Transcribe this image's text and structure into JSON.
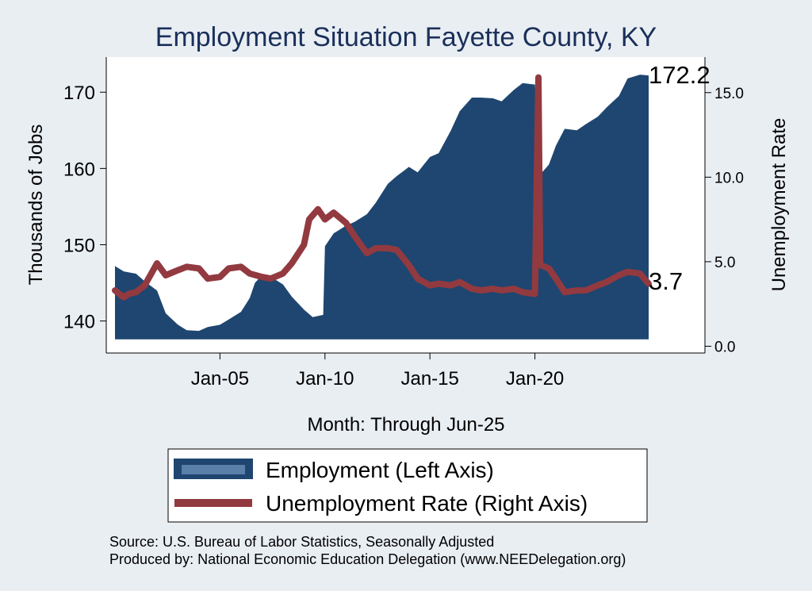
{
  "chart_data": {
    "type": "area",
    "title": "Employment Situation Fayette  County, KY",
    "xlabel": "Month: Through Jun-25",
    "ylabel_left": "Thousands of Jobs",
    "ylabel_right": "Unemployment Rate",
    "x_start": "2000-01",
    "x_end": "2025-06",
    "x_ticks": [
      "Jan-05",
      "Jan-10",
      "Jan-15",
      "Jan-20"
    ],
    "y_left_ticks": [
      140,
      150,
      160,
      170
    ],
    "y_right_ticks": [
      "0.0",
      "5.0",
      "10.0",
      "15.0"
    ],
    "ylim_left": [
      135.8,
      174.6
    ],
    "ylim_right": [
      -0.4,
      17.1
    ],
    "grid": false,
    "legend": {
      "position": "bottom",
      "items": [
        "Employment (Left Axis)",
        "Unemployment Rate (Right Axis)"
      ]
    },
    "colors": {
      "employment": "#1e4670",
      "employment_legend": "#5a7fa8",
      "unemployment": "#923a40",
      "title": "#1a2f5a",
      "background": "#e9eef3"
    },
    "end_labels": {
      "employment": "172.2",
      "unemployment": "3.7"
    },
    "series": [
      {
        "name": "Employment (Left Axis)",
        "axis": "left",
        "points": [
          [
            "2000-01",
            147.2
          ],
          [
            "2000-06",
            146.5
          ],
          [
            "2001-01",
            146.2
          ],
          [
            "2001-06",
            145.2
          ],
          [
            "2002-01",
            144.0
          ],
          [
            "2002-06",
            141.0
          ],
          [
            "2003-01",
            139.5
          ],
          [
            "2003-06",
            138.8
          ],
          [
            "2004-01",
            138.7
          ],
          [
            "2004-06",
            139.2
          ],
          [
            "2005-01",
            139.5
          ],
          [
            "2005-06",
            140.2
          ],
          [
            "2006-01",
            141.2
          ],
          [
            "2006-06",
            143.0
          ],
          [
            "2006-09",
            145.0
          ],
          [
            "2007-01",
            146.0
          ],
          [
            "2007-06",
            145.8
          ],
          [
            "2008-01",
            144.8
          ],
          [
            "2008-06",
            143.2
          ],
          [
            "2009-01",
            141.5
          ],
          [
            "2009-06",
            140.5
          ],
          [
            "2009-12",
            140.8
          ],
          [
            "2010-01",
            149.8
          ],
          [
            "2010-06",
            151.5
          ],
          [
            "2011-01",
            152.5
          ],
          [
            "2011-06",
            153.0
          ],
          [
            "2012-01",
            154.0
          ],
          [
            "2012-06",
            155.5
          ],
          [
            "2013-01",
            158.0
          ],
          [
            "2013-06",
            159.0
          ],
          [
            "2014-01",
            160.2
          ],
          [
            "2014-06",
            159.5
          ],
          [
            "2015-01",
            161.5
          ],
          [
            "2015-06",
            162.0
          ],
          [
            "2016-01",
            165.0
          ],
          [
            "2016-06",
            167.5
          ],
          [
            "2017-01",
            169.3
          ],
          [
            "2017-06",
            169.3
          ],
          [
            "2018-01",
            169.2
          ],
          [
            "2018-06",
            168.8
          ],
          [
            "2019-01",
            170.3
          ],
          [
            "2019-06",
            171.2
          ],
          [
            "2020-01",
            171.0
          ],
          [
            "2020-04",
            159.2
          ],
          [
            "2020-09",
            160.5
          ],
          [
            "2021-01",
            163.0
          ],
          [
            "2021-06",
            165.2
          ],
          [
            "2022-01",
            165.0
          ],
          [
            "2022-06",
            165.8
          ],
          [
            "2023-01",
            166.8
          ],
          [
            "2023-06",
            168.0
          ],
          [
            "2024-01",
            169.5
          ],
          [
            "2024-06",
            171.8
          ],
          [
            "2025-01",
            172.3
          ],
          [
            "2025-06",
            172.2
          ]
        ]
      },
      {
        "name": "Unemployment Rate (Right Axis)",
        "axis": "right",
        "points": [
          [
            "2000-01",
            3.3
          ],
          [
            "2000-06",
            2.9
          ],
          [
            "2000-09",
            3.1
          ],
          [
            "2001-01",
            3.2
          ],
          [
            "2001-06",
            3.6
          ],
          [
            "2002-01",
            4.9
          ],
          [
            "2002-06",
            4.2
          ],
          [
            "2003-01",
            4.5
          ],
          [
            "2003-06",
            4.7
          ],
          [
            "2004-01",
            4.6
          ],
          [
            "2004-06",
            4.0
          ],
          [
            "2005-01",
            4.1
          ],
          [
            "2005-06",
            4.6
          ],
          [
            "2006-01",
            4.7
          ],
          [
            "2006-06",
            4.3
          ],
          [
            "2007-01",
            4.1
          ],
          [
            "2007-06",
            4.0
          ],
          [
            "2008-01",
            4.3
          ],
          [
            "2008-06",
            4.9
          ],
          [
            "2009-01",
            6.0
          ],
          [
            "2009-04",
            7.5
          ],
          [
            "2009-09",
            8.1
          ],
          [
            "2010-01",
            7.5
          ],
          [
            "2010-06",
            7.9
          ],
          [
            "2011-01",
            7.3
          ],
          [
            "2011-06",
            6.5
          ],
          [
            "2012-01",
            5.5
          ],
          [
            "2012-06",
            5.8
          ],
          [
            "2013-01",
            5.8
          ],
          [
            "2013-06",
            5.7
          ],
          [
            "2014-01",
            4.8
          ],
          [
            "2014-06",
            4.0
          ],
          [
            "2015-01",
            3.6
          ],
          [
            "2015-06",
            3.7
          ],
          [
            "2016-01",
            3.6
          ],
          [
            "2016-06",
            3.8
          ],
          [
            "2017-01",
            3.4
          ],
          [
            "2017-06",
            3.3
          ],
          [
            "2018-01",
            3.4
          ],
          [
            "2018-06",
            3.3
          ],
          [
            "2019-01",
            3.4
          ],
          [
            "2019-06",
            3.2
          ],
          [
            "2020-01",
            3.1
          ],
          [
            "2020-03",
            15.9
          ],
          [
            "2020-04",
            4.8
          ],
          [
            "2020-09",
            4.6
          ],
          [
            "2021-01",
            4.0
          ],
          [
            "2021-06",
            3.2
          ],
          [
            "2022-01",
            3.3
          ],
          [
            "2022-06",
            3.3
          ],
          [
            "2023-01",
            3.6
          ],
          [
            "2023-06",
            3.8
          ],
          [
            "2024-01",
            4.2
          ],
          [
            "2024-06",
            4.4
          ],
          [
            "2025-01",
            4.3
          ],
          [
            "2025-06",
            3.7
          ]
        ]
      }
    ]
  },
  "footer": {
    "source": "Source: U.S. Bureau of Labor Statistics, Seasonally Adjusted",
    "produced_by": "Produced by: National Economic Education Delegation (www.NEEDelegation.org)"
  }
}
